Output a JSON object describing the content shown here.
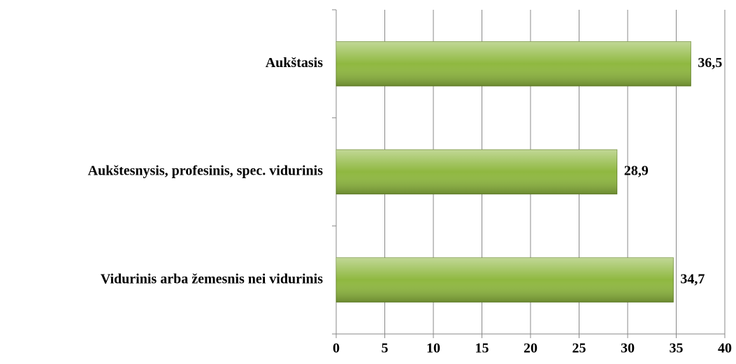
{
  "chart_data": {
    "type": "bar",
    "orientation": "horizontal",
    "categories": [
      "Aukštasis",
      "Aukštesnysis, profesinis, spec. vidurinis",
      "Vidurinis arba žemesnis nei vidurinis"
    ],
    "values": [
      36.5,
      28.9,
      34.7
    ],
    "value_labels": [
      "36,5",
      "28,9",
      "34,7"
    ],
    "color": "#8fb840",
    "xlim": [
      0,
      40
    ],
    "xticks": [
      0,
      5,
      10,
      15,
      20,
      25,
      30,
      35,
      40
    ],
    "grid": true
  }
}
